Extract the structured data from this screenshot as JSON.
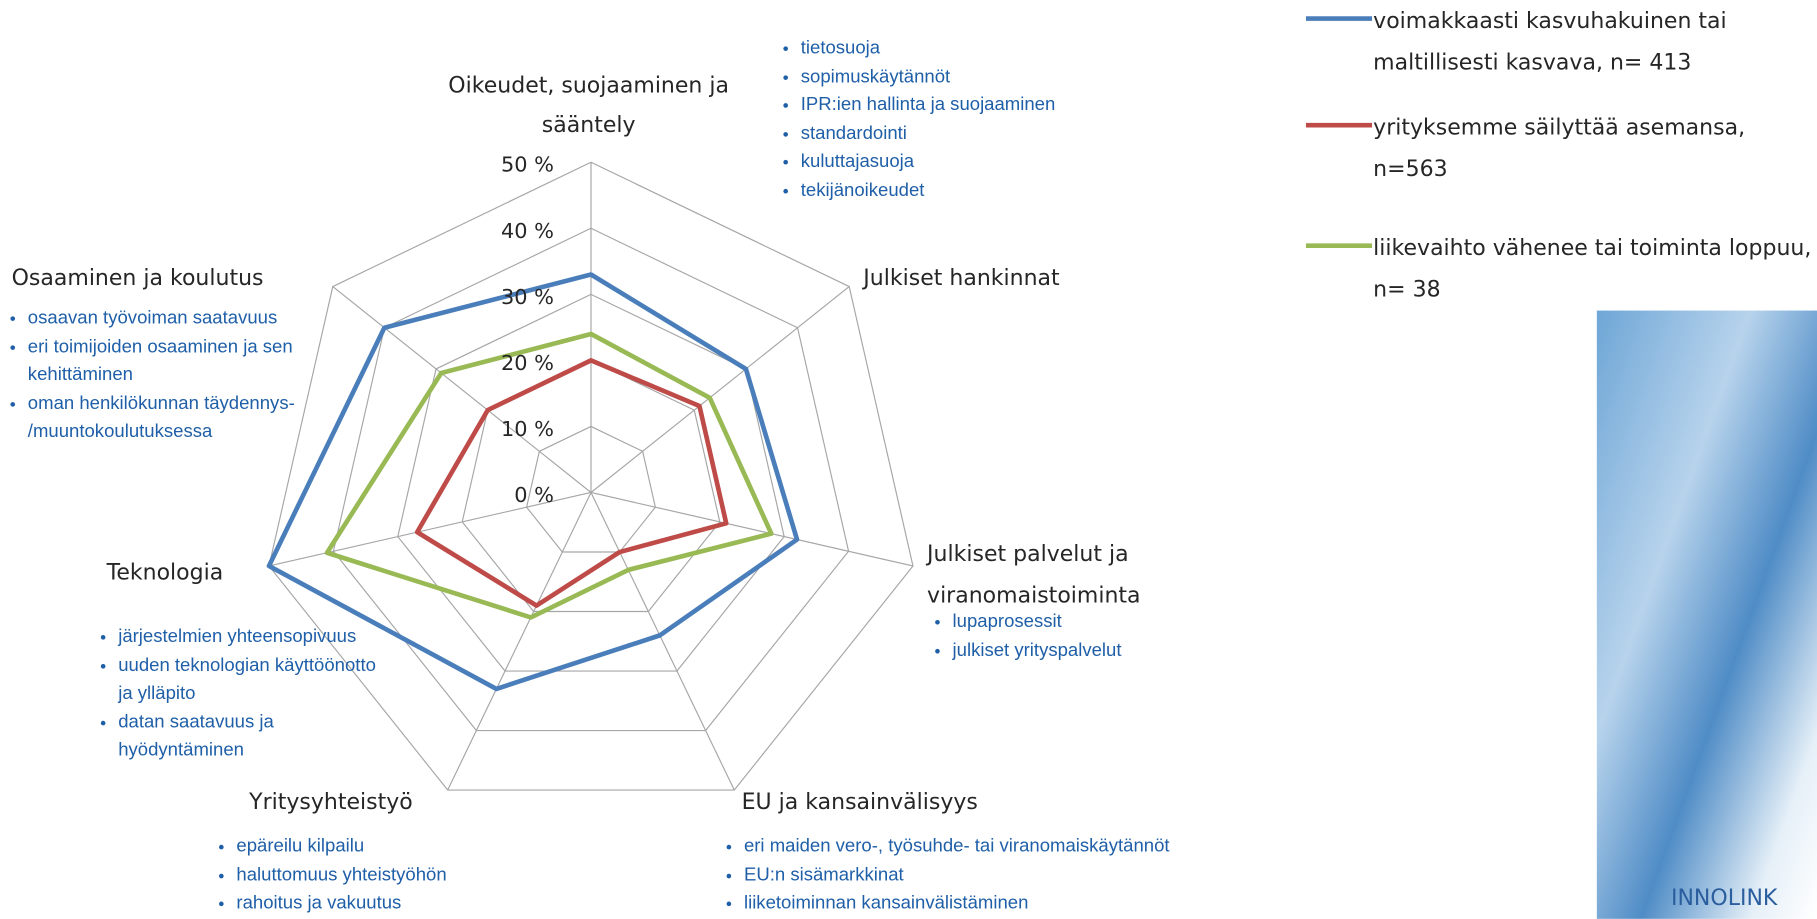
{
  "chart_data": {
    "type": "radar",
    "categories": [
      "Oikeudet, suojaaminen ja sääntely",
      "Julkiset hankinnat",
      "Julkiset palvelut ja viranomaistoiminta",
      "EU ja kansainvälisyys",
      "Yritysyhteistyö",
      "Teknologia",
      "Osaaminen ja koulutus"
    ],
    "series": [
      {
        "name": "voimakkaasti kasvuhakuinen tai maltillisesti kasvava, n= 413",
        "color": "#4a7ebb",
        "values": [
          33,
          30,
          32,
          24,
          33,
          50,
          40
        ]
      },
      {
        "name": "yrityksemme säilyttää asemansa, n=563",
        "color": "#be4b48",
        "values": [
          20,
          21,
          21,
          10,
          19,
          27,
          20
        ]
      },
      {
        "name": "liikevaihto vähenee tai toiminta loppuu, n= 38",
        "color": "#98b954",
        "values": [
          24,
          23,
          28,
          13,
          21,
          41,
          29
        ]
      }
    ],
    "ylim": [
      0,
      50
    ],
    "yticks": [
      {
        "value": 0,
        "label": "0 %"
      },
      {
        "value": 10,
        "label": "10 %"
      },
      {
        "value": 20,
        "label": "20 %"
      },
      {
        "value": 30,
        "label": "30 %"
      },
      {
        "value": 40,
        "label": "40 %"
      },
      {
        "value": 50,
        "label": "50 %"
      }
    ],
    "grid": true,
    "legend": "top-right",
    "annotations": [
      [
        "tietosuoja",
        "sopimuskäytännöt",
        "IPR:ien hallinta ja suojaaminen",
        "standardointi",
        "kuluttajasuoja",
        "tekijänoikeudet"
      ],
      [],
      [
        "lupaprosessit",
        "julkiset yrityspalvelut"
      ],
      [
        "eri maiden vero-, työsuhde- tai viranomaiskäytännöt",
        "EU:n sisämarkkinat",
        "liiketoiminnan kansainvälistäminen"
      ],
      [
        "epäreilu kilpailu",
        "haluttomuus yhteistyöhön",
        "rahoitus ja vakuutus"
      ],
      [
        "järjestelmien yhteensopivuus",
        "uuden teknologian käyttöönotto ja ylläpito",
        "datan saatavuus ja hyödyntäminen"
      ],
      [
        "osaavan työvoiman saatavuus",
        "eri toimijoiden osaaminen ja sen kehittäminen",
        "oman henkilökunnan täydennys- /muuntokoulutuksessa"
      ]
    ]
  },
  "logo_text": "INNOLINK"
}
